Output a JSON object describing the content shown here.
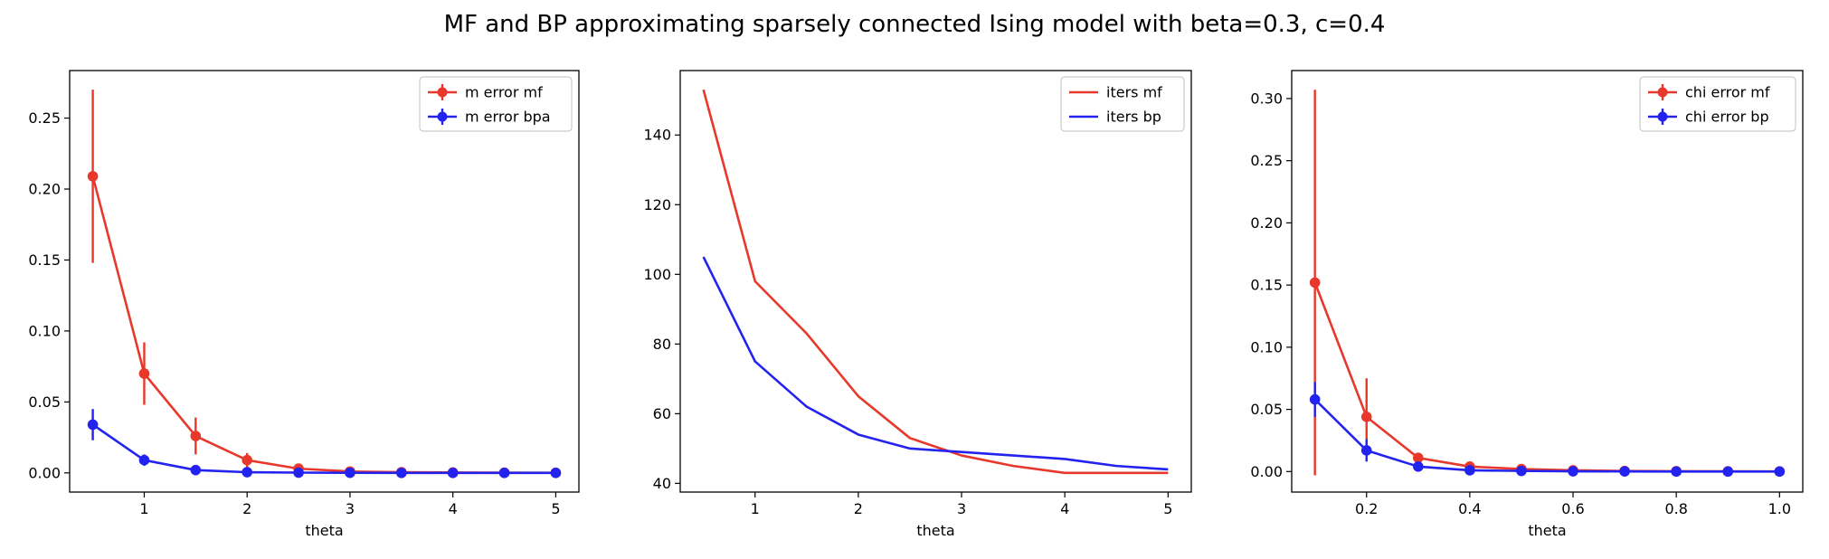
{
  "figure_title": "MF and BP approximating sparsely connected Ising model with beta=0.3, c=0.4",
  "colors": {
    "red": "#e8382b",
    "blue": "#2323f0",
    "frame": "#000000",
    "background": "#ffffff"
  },
  "chart_data": [
    {
      "type": "line",
      "error_bars": true,
      "markers": true,
      "title": "",
      "xlabel": "theta",
      "ylabel": "",
      "xlim": [
        0.275,
        5.225
      ],
      "ylim": [
        -0.0135,
        0.2835
      ],
      "xticks": [
        1,
        2,
        3,
        4,
        5
      ],
      "xtick_labels": [
        "1",
        "2",
        "3",
        "4",
        "5"
      ],
      "yticks": [
        0.0,
        0.05,
        0.1,
        0.15,
        0.2,
        0.25
      ],
      "ytick_labels": [
        "0.00",
        "0.05",
        "0.10",
        "0.15",
        "0.20",
        "0.25"
      ],
      "grid": false,
      "legend_position": "upper right",
      "x": [
        0.5,
        1.0,
        1.5,
        2.0,
        2.5,
        3.0,
        3.5,
        4.0,
        4.5,
        5.0
      ],
      "series": [
        {
          "name": "m error mf",
          "color": "#e8382b",
          "values": [
            0.209,
            0.07,
            0.026,
            0.009,
            0.003,
            0.001,
            0.0005,
            0.0003,
            0.0002,
            0.0001
          ],
          "errors": [
            0.061,
            0.022,
            0.013,
            0.005,
            0.002,
            0.001,
            0.0005,
            0.0003,
            0.0002,
            0.0001
          ]
        },
        {
          "name": "m error bpa",
          "color": "#2323f0",
          "values": [
            0.034,
            0.009,
            0.002,
            0.0005,
            0.0002,
            0.0001,
            0.0,
            0.0,
            0.0,
            0.0
          ],
          "errors": [
            0.011,
            0.004,
            0.001,
            0.0005,
            0.0002,
            0.0001,
            0.0,
            0.0,
            0.0,
            0.0
          ]
        }
      ]
    },
    {
      "type": "line",
      "error_bars": false,
      "markers": false,
      "title": "",
      "xlabel": "theta",
      "ylabel": "",
      "xlim": [
        0.275,
        5.225
      ],
      "ylim": [
        37.5,
        158.5
      ],
      "xticks": [
        1,
        2,
        3,
        4,
        5
      ],
      "xtick_labels": [
        "1",
        "2",
        "3",
        "4",
        "5"
      ],
      "yticks": [
        40,
        60,
        80,
        100,
        120,
        140
      ],
      "ytick_labels": [
        "40",
        "60",
        "80",
        "100",
        "120",
        "140"
      ],
      "grid": false,
      "legend_position": "upper right",
      "x": [
        0.5,
        1.0,
        1.5,
        2.0,
        2.5,
        3.0,
        3.5,
        4.0,
        4.5,
        5.0
      ],
      "series": [
        {
          "name": "iters mf",
          "color": "#e8382b",
          "values": [
            153,
            98,
            83,
            65,
            53,
            48,
            45,
            43,
            43,
            43
          ]
        },
        {
          "name": "iters bp",
          "color": "#2323f0",
          "values": [
            105,
            75,
            62,
            54,
            50,
            49,
            48,
            47,
            45,
            44
          ]
        }
      ]
    },
    {
      "type": "line",
      "error_bars": true,
      "markers": true,
      "title": "",
      "xlabel": "theta",
      "ylabel": "",
      "xlim": [
        0.055,
        1.045
      ],
      "ylim": [
        -0.0165,
        0.3225
      ],
      "xticks": [
        0.2,
        0.4,
        0.6,
        0.8,
        1.0
      ],
      "xtick_labels": [
        "0.2",
        "0.4",
        "0.6",
        "0.8",
        "1.0"
      ],
      "yticks": [
        0.0,
        0.05,
        0.1,
        0.15,
        0.2,
        0.25,
        0.3
      ],
      "ytick_labels": [
        "0.00",
        "0.05",
        "0.10",
        "0.15",
        "0.20",
        "0.25",
        "0.30"
      ],
      "grid": false,
      "legend_position": "upper right",
      "x": [
        0.1,
        0.2,
        0.3,
        0.4,
        0.5,
        0.6,
        0.7,
        0.8,
        0.9,
        1.0
      ],
      "series": [
        {
          "name": "chi error mf",
          "color": "#e8382b",
          "values": [
            0.152,
            0.044,
            0.011,
            0.004,
            0.002,
            0.001,
            0.0005,
            0.0003,
            0.0002,
            0.0001
          ],
          "errors": [
            0.155,
            0.031,
            0.004,
            0.002,
            0.001,
            0.001,
            0.0005,
            0.0003,
            0.0002,
            0.0001
          ]
        },
        {
          "name": "chi error bp",
          "color": "#2323f0",
          "values": [
            0.058,
            0.017,
            0.004,
            0.001,
            0.0005,
            0.0002,
            0.0001,
            0.0,
            0.0,
            0.0
          ],
          "errors": [
            0.014,
            0.009,
            0.002,
            0.001,
            0.0005,
            0.0002,
            0.0001,
            0.0,
            0.0,
            0.0
          ]
        }
      ]
    }
  ]
}
